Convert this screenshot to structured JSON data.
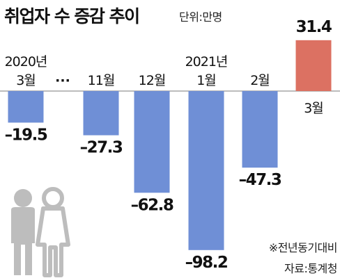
{
  "title": "취업자 수 증감 추이",
  "unit": "단위:만명",
  "ellipsis": "···",
  "note": "※전년동기대비",
  "source": "자료:통계청",
  "colors": {
    "negative": "#6f8fd6",
    "positive": "#dc7162",
    "icon": "#bdbdbd"
  },
  "icon": "people-couple-icon",
  "chart_data": {
    "type": "bar",
    "categories": [
      "3월",
      "11월",
      "12월",
      "1월",
      "2월",
      "3월"
    ],
    "year_labels": [
      "2020년",
      "",
      "",
      "2021년",
      "",
      ""
    ],
    "values": [
      -19.5,
      -27.3,
      -62.8,
      -98.2,
      -47.3,
      31.4
    ],
    "value_labels": [
      "–19.5",
      "–27.3",
      "–62.8",
      "–98.2",
      "–47.3",
      "31.4"
    ],
    "ylim": [
      -98.2,
      31.4
    ],
    "grid": false,
    "legend": "none"
  }
}
